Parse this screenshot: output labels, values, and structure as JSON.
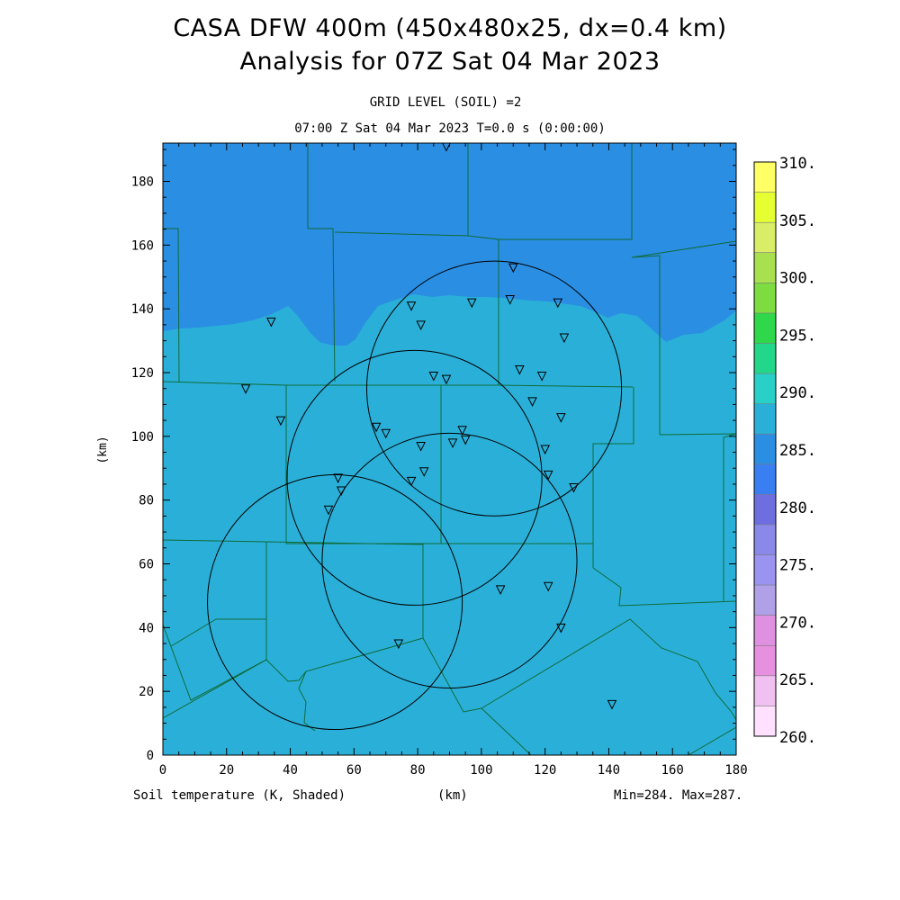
{
  "header": {
    "title_line1": "CASA DFW 400m (450x480x25, dx=0.4 km)",
    "title_line2": "Analysis for 07Z Sat 04 Mar 2023",
    "grid_level": "GRID LEVEL (SOIL) =2",
    "time_line": "07:00 Z Sat 04 Mar 2023   T=0.0 s (0:00:00)"
  },
  "footer": {
    "field_label": "Soil temperature (K, Shaded)",
    "x_unit": "(km)",
    "minmax": "Min=284. Max=287."
  },
  "axes": {
    "x_ticks": [
      "0",
      "20",
      "40",
      "60",
      "80",
      "100",
      "120",
      "140",
      "160",
      "180"
    ],
    "y_ticks": [
      "0",
      "20",
      "40",
      "60",
      "80",
      "100",
      "120",
      "140",
      "160",
      "180"
    ],
    "y_label": "(km)",
    "x_range": [
      0,
      180
    ],
    "y_range": [
      0,
      192
    ]
  },
  "colorbar": {
    "labels": [
      "310.",
      "305.",
      "300.",
      "295.",
      "290.",
      "285.",
      "280.",
      "275.",
      "270.",
      "265.",
      "260."
    ],
    "colors": [
      "#ffff66",
      "#e6ff33",
      "#d9ee66",
      "#a8e050",
      "#7ddd40",
      "#2ed84a",
      "#22d68a",
      "#28d0c8",
      "#2ab0d8",
      "#2a8ee3",
      "#3a7ff2",
      "#6e6ee0",
      "#8a88e8",
      "#9a94f0",
      "#b0a0e8",
      "#e090e0",
      "#e890e0",
      "#f0c0f0",
      "#ffe0ff"
    ]
  },
  "map": {
    "fill_warm": "#2ab0d8",
    "fill_cool": "#2a8ee3",
    "border_color": "#0f6b3a"
  },
  "stations": [
    [
      89,
      191
    ],
    [
      110,
      153
    ],
    [
      78,
      141
    ],
    [
      97,
      142
    ],
    [
      109,
      143
    ],
    [
      124,
      142
    ],
    [
      34,
      136
    ],
    [
      81,
      135
    ],
    [
      126,
      131
    ],
    [
      112,
      121
    ],
    [
      85,
      119
    ],
    [
      89,
      118
    ],
    [
      119,
      119
    ],
    [
      26,
      115
    ],
    [
      116,
      111
    ],
    [
      37,
      105
    ],
    [
      125,
      106
    ],
    [
      67,
      103
    ],
    [
      70,
      101
    ],
    [
      94,
      102
    ],
    [
      81,
      97
    ],
    [
      91,
      98
    ],
    [
      95,
      99
    ],
    [
      120,
      96
    ],
    [
      55,
      87
    ],
    [
      78,
      86
    ],
    [
      82,
      89
    ],
    [
      121,
      88
    ],
    [
      129,
      84
    ],
    [
      56,
      83
    ],
    [
      52,
      77
    ],
    [
      106,
      52
    ],
    [
      121,
      53
    ],
    [
      125,
      40
    ],
    [
      74,
      35
    ],
    [
      141,
      16
    ]
  ],
  "radar_rings": [
    {
      "cx": 104,
      "cy": 115,
      "r": 40
    },
    {
      "cx": 79,
      "cy": 87,
      "r": 40
    },
    {
      "cx": 90,
      "cy": 61,
      "r": 40
    },
    {
      "cx": 54,
      "cy": 48,
      "r": 40
    }
  ]
}
